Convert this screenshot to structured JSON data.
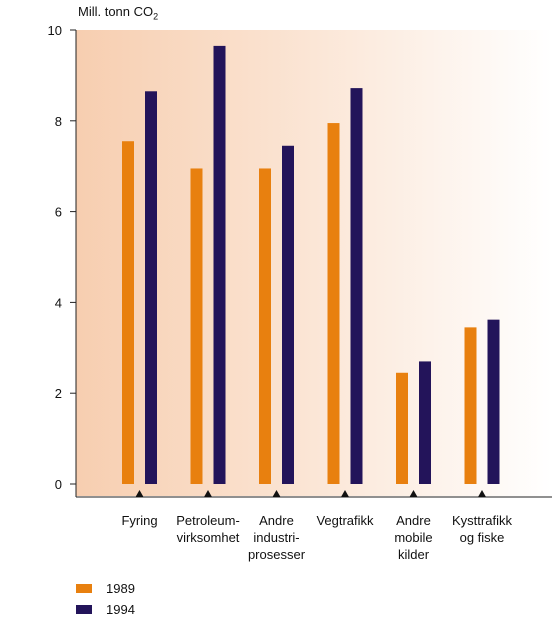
{
  "chart_data": {
    "type": "bar",
    "ylabel_main": "Mill. tonn CO",
    "ylabel_sub": "2",
    "ylim": [
      0,
      10
    ],
    "yticks": [
      0,
      2,
      4,
      6,
      8,
      10
    ],
    "categories": [
      [
        "Fyring"
      ],
      [
        "Petroleum-",
        "virksomhet"
      ],
      [
        "Andre",
        "industri-",
        "prosesser"
      ],
      [
        "Vegtrafikk"
      ],
      [
        "Andre",
        "mobile",
        "kilder"
      ],
      [
        "Kysttrafikk",
        "og fiske"
      ]
    ],
    "series": [
      {
        "name": "1989",
        "color": "#e8800f",
        "values": [
          7.55,
          6.95,
          6.95,
          7.95,
          2.45,
          3.45
        ]
      },
      {
        "name": "1994",
        "color": "#23145a",
        "values": [
          8.65,
          9.65,
          7.45,
          8.72,
          2.7,
          3.62
        ]
      }
    ],
    "grid": false,
    "legend_position": "bottom-left"
  }
}
